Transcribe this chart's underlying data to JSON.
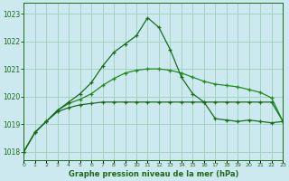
{
  "hours": [
    0,
    1,
    2,
    3,
    4,
    5,
    6,
    7,
    8,
    9,
    10,
    11,
    12,
    13,
    14,
    15,
    16,
    17,
    18,
    19,
    20,
    21,
    22,
    23
  ],
  "line_peak": [
    1018.0,
    1018.7,
    1019.1,
    1019.5,
    1019.8,
    1020.1,
    1020.5,
    1021.1,
    1021.6,
    1021.9,
    1022.2,
    1022.85,
    1022.5,
    1021.7,
    1020.7,
    1020.1,
    1019.8,
    1019.2,
    1019.15,
    1019.1,
    1019.15,
    1019.1,
    1019.05,
    1019.1
  ],
  "line_flat_top": [
    1018.0,
    1018.7,
    1019.1,
    1019.5,
    1019.75,
    1019.9,
    1020.1,
    1020.4,
    1020.65,
    1020.85,
    1020.95,
    1021.0,
    1021.0,
    1020.95,
    1020.85,
    1020.7,
    1020.55,
    1020.45,
    1020.4,
    1020.35,
    1020.25,
    1020.15,
    1019.95,
    1019.1
  ],
  "line_flat_mid": [
    1018.0,
    1018.7,
    1019.1,
    1019.45,
    1019.6,
    1019.7,
    1019.75,
    1019.8,
    1019.8,
    1019.8,
    1019.8,
    1019.8,
    1019.8,
    1019.8,
    1019.8,
    1019.8,
    1019.8,
    1019.8,
    1019.8,
    1019.8,
    1019.8,
    1019.8,
    1019.8,
    1019.1
  ],
  "background_color": "#cde9f0",
  "grid_color": "#9dcfba",
  "line_color_dark": "#1a6b1a",
  "line_color_mid": "#1f8c1f",
  "xlabel": "Graphe pression niveau de la mer (hPa)",
  "ylim_min": 1017.7,
  "ylim_max": 1023.4,
  "yticks": [
    1018,
    1019,
    1020,
    1021,
    1022,
    1023
  ],
  "marker": "+"
}
